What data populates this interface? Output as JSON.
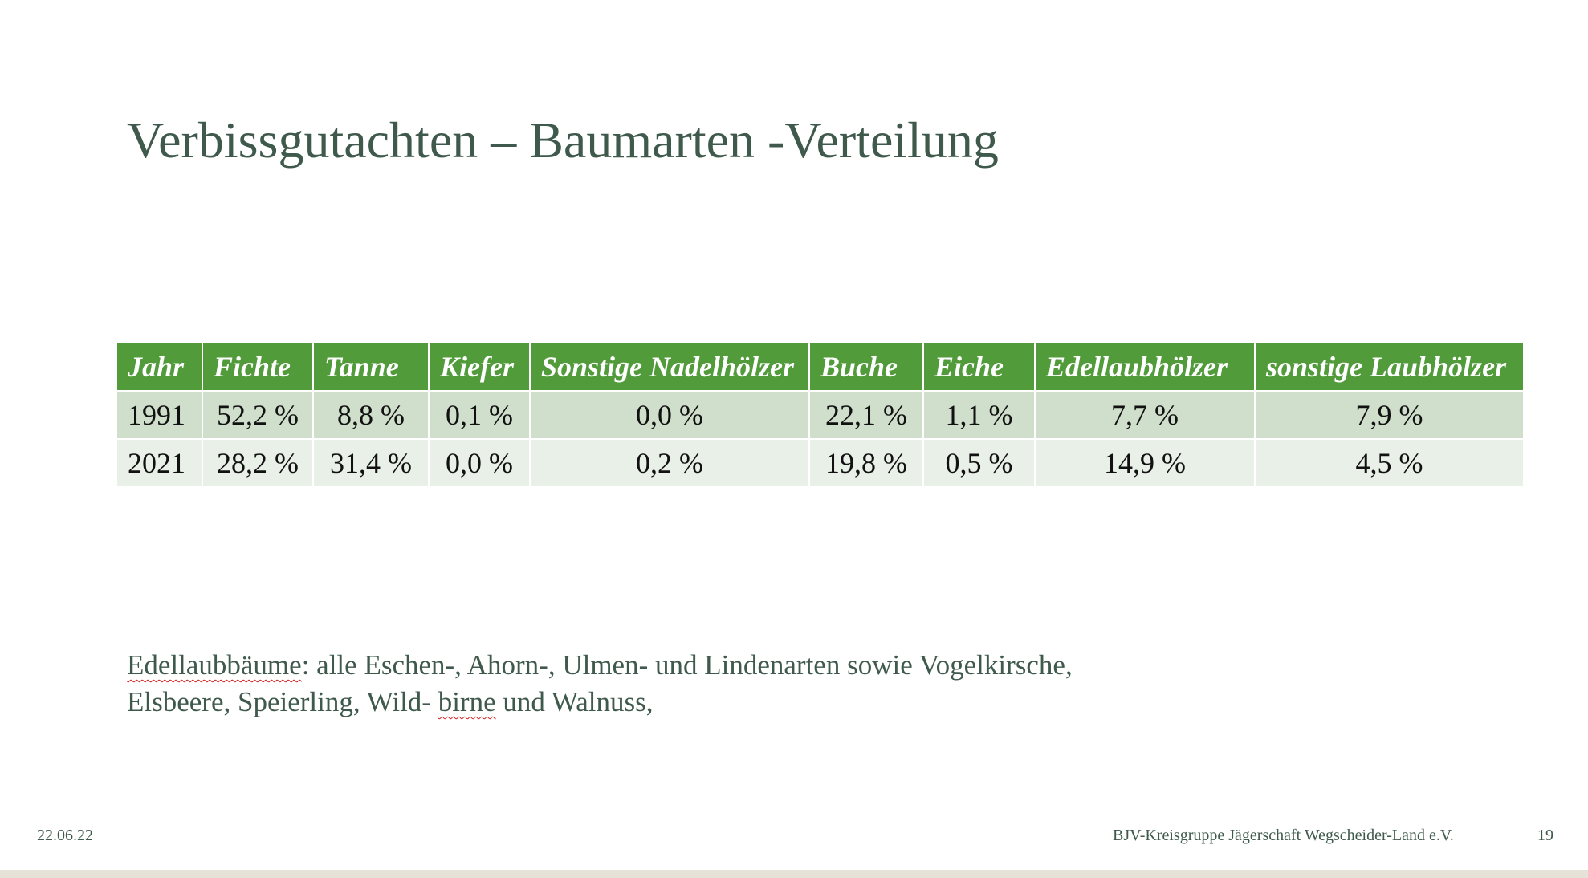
{
  "slide": {
    "title": "Verbissgutachten – Baumarten -Verteilung",
    "table": {
      "headers": [
        "Jahr",
        "Fichte",
        "Tanne",
        "Kiefer",
        "Sonstige Nadelhölzer",
        "Buche",
        "Eiche",
        "Edellaubhölzer",
        "sonstige Laubhölzer"
      ],
      "rows": [
        [
          "1991",
          "52,2 %",
          "8,8 %",
          "0,1 %",
          "0,0 %",
          "22,1 %",
          "1,1 %",
          "7,7 %",
          "7,9 %"
        ],
        [
          "2021",
          "28,2 %",
          "31,4 %",
          "0,0 %",
          "0,2 %",
          "19,8 %",
          "0,5 %",
          "14,9 %",
          "4,5 %"
        ]
      ]
    },
    "note": {
      "term": "Edellaubbäume",
      "line1_rest": ": alle Eschen-, Ahorn-, Ulmen- und Lindenarten sowie Vogelkirsche,",
      "line2_start": "Elsbeere, Speierling, Wild- ",
      "line2_squiggle": "birne",
      "line2_end": " und Walnuss,"
    },
    "footer": {
      "date": "22.06.22",
      "organization": "BJV-Kreisgruppe Jägerschaft Wegscheider-Land e.V.",
      "page_number": "19"
    }
  }
}
